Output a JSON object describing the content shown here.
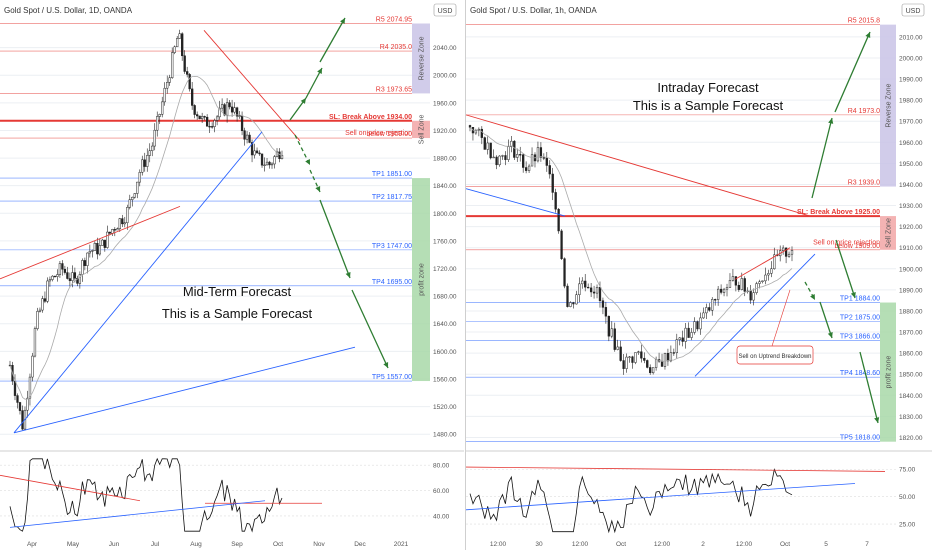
{
  "colors": {
    "grid": "#eceff3",
    "axis_text": "#555555",
    "candle": "#222222",
    "red": "#e53935",
    "blue": "#2962ff",
    "green": "#2e7d32",
    "reverse_zone": "#c9c3e6",
    "sell_zone": "#f2a6a6",
    "profit_zone": "#a8d8a8",
    "ma": "#aaaaaa"
  },
  "chart_data": [
    {
      "type": "candlestick",
      "title": "Gold Spot / U.S. Dollar, 1D, OANDA",
      "currency": "USD",
      "annotation_title": "Mid-Term Forecast",
      "annotation_subtitle": "This is a Sample Forecast",
      "x_ticks": [
        "Apr",
        "May",
        "Jun",
        "Jul",
        "Aug",
        "Sep",
        "Oct",
        "Nov",
        "Dec",
        "2021"
      ],
      "y_ticks": [
        1480,
        1520,
        1560,
        1600,
        1640,
        1680,
        1720,
        1760,
        1800,
        1840,
        1880,
        1920,
        1960,
        2000,
        2040
      ],
      "ylim": [
        1460,
        2080
      ],
      "levels": [
        {
          "label": "R5 2074.95",
          "value": 2074.95,
          "color": "red"
        },
        {
          "label": "R4 2035.0",
          "value": 2035.0,
          "color": "red"
        },
        {
          "label": "R3 1973.65",
          "value": 1973.65,
          "color": "red"
        },
        {
          "label": "SL: Break Above 1934.00",
          "value": 1934.0,
          "color": "red",
          "bold": true
        },
        {
          "label": "Sell on price rejection",
          "value": 1912.0,
          "color": "red"
        },
        {
          "label": "below 1909.00",
          "value": 1909.0,
          "color": "red"
        },
        {
          "label": "TP1 1851.00",
          "value": 1851.0,
          "color": "blue"
        },
        {
          "label": "TP2 1817.75",
          "value": 1817.75,
          "color": "blue"
        },
        {
          "label": "TP3 1747.00",
          "value": 1747.0,
          "color": "blue"
        },
        {
          "label": "TP4 1695.00",
          "value": 1695.0,
          "color": "blue"
        },
        {
          "label": "TP5 1557.00",
          "value": 1557.0,
          "color": "blue"
        }
      ],
      "zones": [
        {
          "label": "Reverse Zone",
          "from": 1973.65,
          "to": 2074.95
        },
        {
          "label": "Sell Zone",
          "from": 1909.0,
          "to": 1934.0
        },
        {
          "label": "profit zone",
          "from": 1557.0,
          "to": 1851.0
        }
      ],
      "close_path": [
        1580,
        1490,
        1640,
        1700,
        1720,
        1700,
        1745,
        1750,
        1780,
        1800,
        1860,
        1900,
        1980,
        2060,
        1960,
        1930,
        1940,
        1960,
        1920,
        1880,
        1870,
        1895
      ],
      "oscillator": {
        "y_ticks": [
          40,
          60,
          80
        ],
        "ylim": [
          25,
          88
        ]
      }
    },
    {
      "type": "candlestick",
      "title": "Gold Spot / U.S. Dollar, 1h, OANDA",
      "currency": "USD",
      "annotation_title": "Intraday Forecast",
      "annotation_subtitle": "This is a Sample Forecast",
      "callout": "Sell on Uptrend Breakdown",
      "x_ticks": [
        "12:00",
        "30",
        "12:00",
        "Oct",
        "12:00",
        "2",
        "12:00",
        "Oct",
        "5",
        "7"
      ],
      "y_ticks": [
        1820,
        1830,
        1840,
        1850,
        1860,
        1870,
        1880,
        1890,
        1900,
        1910,
        1920,
        1930,
        1940,
        1950,
        1960,
        1970,
        1980,
        1990,
        2000,
        2010
      ],
      "ylim": [
        1815,
        2018
      ],
      "levels": [
        {
          "label": "R5 2015.8",
          "value": 2015.8,
          "color": "red"
        },
        {
          "label": "R4 1973.0",
          "value": 1973.0,
          "color": "red"
        },
        {
          "label": "R3 1939.0",
          "value": 1939.0,
          "color": "red"
        },
        {
          "label": "SL: Break Above 1925.00",
          "value": 1925.0,
          "color": "red",
          "bold": true
        },
        {
          "label": "Sell on price rejection",
          "value": 1911.0,
          "color": "red"
        },
        {
          "label": "below 1909.00",
          "value": 1909.0,
          "color": "red"
        },
        {
          "label": "TP1 1884.00",
          "value": 1884.0,
          "color": "blue"
        },
        {
          "label": "TP2 1875.00",
          "value": 1875.0,
          "color": "blue"
        },
        {
          "label": "TP3 1866.00",
          "value": 1866.0,
          "color": "blue"
        },
        {
          "label": "TP4 1848.60",
          "value": 1848.6,
          "color": "blue"
        },
        {
          "label": "TP5 1818.00",
          "value": 1818.0,
          "color": "blue"
        }
      ],
      "zones": [
        {
          "label": "Reverse Zone",
          "from": 1939.0,
          "to": 2015.8
        },
        {
          "label": "Sell Zone",
          "from": 1909.0,
          "to": 1925.0
        },
        {
          "label": "profit zone",
          "from": 1818.0,
          "to": 1884.0
        }
      ],
      "close_path": [
        1968,
        1960,
        1952,
        1958,
        1948,
        1955,
        1938,
        1880,
        1895,
        1890,
        1870,
        1855,
        1860,
        1852,
        1858,
        1866,
        1872,
        1880,
        1890,
        1895,
        1888,
        1898,
        1905,
        1910
      ],
      "oscillator": {
        "y_ticks": [
          25,
          50,
          75
        ],
        "ylim": [
          15,
          88
        ]
      }
    }
  ]
}
